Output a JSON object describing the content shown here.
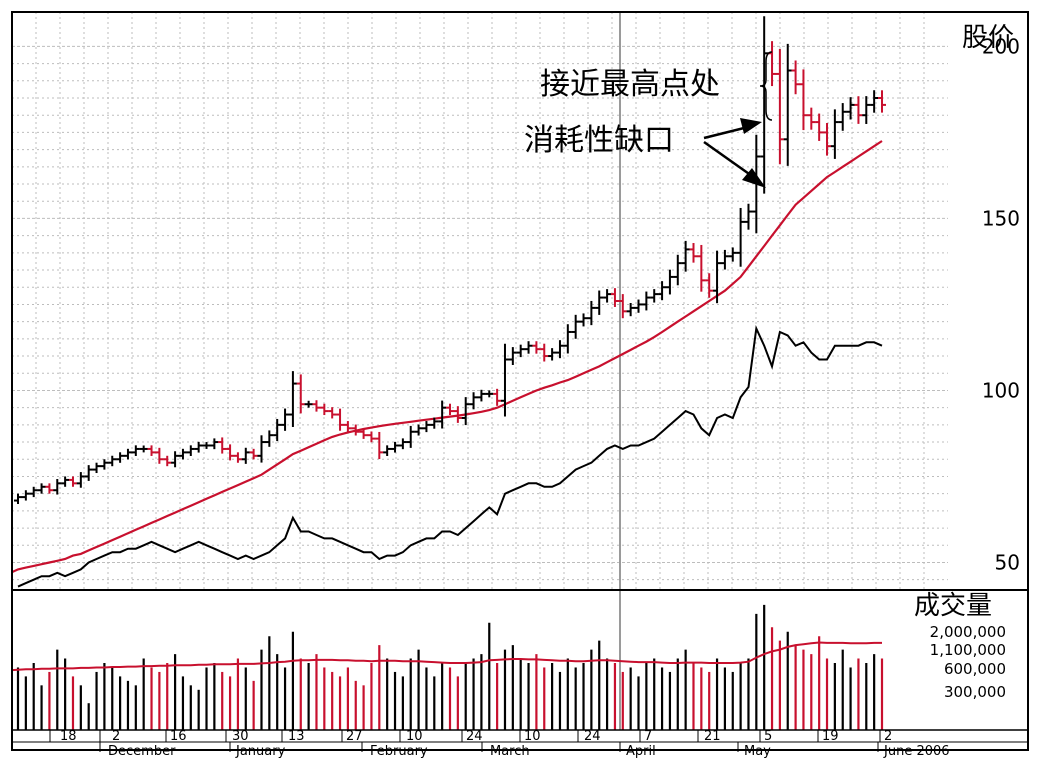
{
  "chart_data": {
    "type": "ohlc",
    "title": "",
    "price_axis": {
      "label": "股价",
      "ticks": [
        50,
        100,
        150,
        200
      ],
      "ylim": [
        42,
        210
      ]
    },
    "volume_axis": {
      "label": "成交量",
      "tick_labels": [
        "2,000,000",
        "1,100,000",
        "600,000",
        "300,000"
      ]
    },
    "annotations": {
      "near_high": "接近最高点处",
      "exhaustion_gap": "消耗性缺口"
    },
    "date_axis": {
      "day_labels": [
        "18",
        "2",
        "16",
        "30",
        "13",
        "27",
        "10",
        "24",
        "10",
        "24",
        "7",
        "21",
        "5",
        "19",
        "2"
      ],
      "month_labels": [
        "December",
        "January",
        "February",
        "March",
        "April",
        "May",
        "June 2006"
      ]
    },
    "colors": {
      "up": "#000000",
      "down": "#c8102e",
      "moving_average": "#c8102e",
      "relative_strength": "#000000",
      "grid": "#bdbdbd"
    },
    "series": {
      "close": [
        69,
        70,
        71,
        72,
        71,
        73,
        74,
        73,
        75,
        77,
        78,
        79,
        80,
        81,
        82,
        83,
        83,
        82,
        80,
        79,
        81,
        82,
        83,
        84,
        84,
        85,
        83,
        81,
        80,
        82,
        81,
        85,
        87,
        90,
        93,
        102,
        96,
        96,
        95,
        94,
        93,
        90,
        89,
        88,
        87,
        86,
        82,
        83,
        84,
        85,
        88,
        89,
        90,
        91,
        95,
        94,
        92,
        96,
        98,
        99,
        99,
        97,
        109,
        111,
        112,
        113,
        112,
        110,
        111,
        113,
        117,
        120,
        121,
        124,
        127,
        128,
        126,
        123,
        124,
        125,
        127,
        128,
        130,
        133,
        137,
        141,
        139,
        132,
        129,
        137,
        139,
        140,
        149,
        152,
        168,
        198,
        192,
        173,
        193,
        189,
        180,
        178,
        175,
        171,
        178,
        181,
        183,
        180,
        183,
        185,
        183
      ],
      "ma": [
        48,
        48.5,
        49,
        49.5,
        50,
        50.5,
        51,
        52,
        52.5,
        53.5,
        54.5,
        55.5,
        56.5,
        57.5,
        58.5,
        59.5,
        60.5,
        61.5,
        62.5,
        63.5,
        64.5,
        65.5,
        66.5,
        67.5,
        68.5,
        69.5,
        70.5,
        71.5,
        72.5,
        73.5,
        74.5,
        75.5,
        77,
        78.5,
        80,
        81.5,
        82.5,
        83.5,
        84.5,
        85.5,
        86.5,
        87.2,
        87.8,
        88.3,
        88.8,
        89.2,
        89.6,
        90,
        90.3,
        90.6,
        90.9,
        91.2,
        91.5,
        91.8,
        92.1,
        92.4,
        92.7,
        93,
        93.4,
        93.8,
        94.3,
        95,
        96,
        97,
        98,
        99,
        100,
        100.8,
        101.5,
        102.3,
        103,
        104,
        105,
        106,
        107,
        108.2,
        109.4,
        110.6,
        111.8,
        113,
        114.2,
        115.5,
        117,
        118.5,
        120,
        121.5,
        123,
        124.5,
        126,
        127.5,
        129,
        131,
        133,
        136,
        139,
        142,
        145,
        148,
        151,
        154,
        156,
        158,
        160,
        162,
        163.5,
        165,
        166.5,
        168,
        169.5,
        171,
        172.5
      ],
      "rs": [
        43,
        44,
        45,
        46,
        46,
        47,
        46,
        47,
        48,
        50,
        51,
        52,
        53,
        53,
        54,
        54,
        55,
        56,
        55,
        54,
        53,
        54,
        55,
        56,
        55,
        54,
        53,
        52,
        51,
        52,
        51,
        52,
        53,
        55,
        57,
        63,
        59,
        59,
        58,
        57,
        57,
        56,
        55,
        54,
        53,
        53,
        51,
        52,
        52,
        53,
        55,
        56,
        57,
        57,
        59,
        59,
        58,
        60,
        62,
        64,
        66,
        64,
        70,
        71,
        72,
        73,
        73,
        72,
        72,
        73,
        75,
        77,
        78,
        79,
        81,
        83,
        84,
        83,
        84,
        84,
        85,
        86,
        88,
        90,
        92,
        94,
        93,
        89,
        87,
        92,
        93,
        92,
        98,
        101,
        118,
        113,
        107,
        117,
        116,
        113,
        114,
        111,
        109,
        109,
        113,
        113,
        113,
        113,
        114,
        114,
        113
      ],
      "volume": [
        1.4,
        1.2,
        1.5,
        1.0,
        1.3,
        1.8,
        1.6,
        1.2,
        1.0,
        0.6,
        1.3,
        1.5,
        1.4,
        1.2,
        1.1,
        1.0,
        1.6,
        1.4,
        1.3,
        1.5,
        1.7,
        1.2,
        1.0,
        0.9,
        1.4,
        1.5,
        1.3,
        1.2,
        1.6,
        1.4,
        1.1,
        1.8,
        2.1,
        1.7,
        1.4,
        2.2,
        1.6,
        1.5,
        1.7,
        1.4,
        1.3,
        1.2,
        1.4,
        1.1,
        1.0,
        1.5,
        1.9,
        1.6,
        1.3,
        1.2,
        1.6,
        1.8,
        1.4,
        1.2,
        1.5,
        1.4,
        1.2,
        1.5,
        1.6,
        1.7,
        2.4,
        1.5,
        1.8,
        1.9,
        1.6,
        1.5,
        1.7,
        1.4,
        1.5,
        1.3,
        1.6,
        1.4,
        1.5,
        1.8,
        2.0,
        1.6,
        1.5,
        1.3,
        1.4,
        1.2,
        1.5,
        1.6,
        1.4,
        1.3,
        1.6,
        1.8,
        1.5,
        1.4,
        1.3,
        1.6,
        1.4,
        1.3,
        1.5,
        1.6,
        2.6,
        2.8,
        2.3,
        2.0,
        2.2,
        1.9,
        1.8,
        1.7,
        2.1,
        1.6,
        1.5,
        1.8,
        1.4,
        1.6,
        1.5,
        1.7,
        1.6
      ],
      "volume_ma": [
        1.35,
        1.36,
        1.36,
        1.37,
        1.37,
        1.38,
        1.38,
        1.38,
        1.39,
        1.39,
        1.4,
        1.4,
        1.41,
        1.41,
        1.42,
        1.42,
        1.43,
        1.43,
        1.44,
        1.44,
        1.45,
        1.45,
        1.45,
        1.46,
        1.46,
        1.47,
        1.47,
        1.47,
        1.48,
        1.48,
        1.48,
        1.49,
        1.5,
        1.52,
        1.53,
        1.55,
        1.56,
        1.56,
        1.57,
        1.57,
        1.57,
        1.56,
        1.56,
        1.55,
        1.55,
        1.54,
        1.55,
        1.55,
        1.55,
        1.54,
        1.54,
        1.54,
        1.53,
        1.52,
        1.51,
        1.5,
        1.5,
        1.5,
        1.51,
        1.52,
        1.56,
        1.57,
        1.58,
        1.59,
        1.59,
        1.58,
        1.58,
        1.57,
        1.56,
        1.55,
        1.55,
        1.54,
        1.54,
        1.55,
        1.56,
        1.56,
        1.55,
        1.54,
        1.53,
        1.52,
        1.52,
        1.52,
        1.51,
        1.5,
        1.5,
        1.51,
        1.51,
        1.51,
        1.5,
        1.5,
        1.5,
        1.5,
        1.51,
        1.53,
        1.62,
        1.7,
        1.76,
        1.8,
        1.86,
        1.9,
        1.92,
        1.94,
        1.96,
        1.95,
        1.95,
        1.95,
        1.94,
        1.94,
        1.94,
        1.95,
        1.95
      ]
    }
  }
}
